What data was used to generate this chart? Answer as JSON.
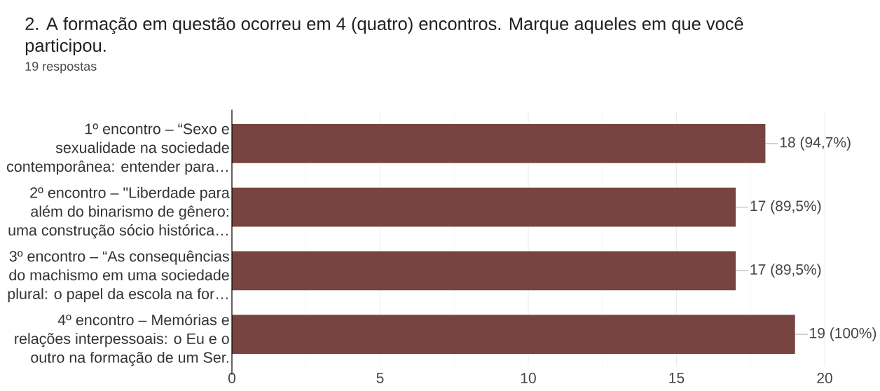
{
  "chart_data": {
    "type": "bar",
    "orientation": "horizontal",
    "title": "2. A formação em questão ocorreu em 4 (quatro) encontros. Marque aqueles em que você participou.",
    "subtitle": "19 respostas",
    "categories": [
      "1º encontro – “Sexo e sexualidade na sociedade contemporânea: entender para…",
      "2º encontro – \"Liberdade para além do binarismo de gênero: uma construção sócio histórica…",
      "3º encontro – “As consequências do machismo em uma sociedade plural: o papel da escola na for…",
      "4º encontro – Memórias e relações interpessoais: o Eu e o outro na formação de um Ser."
    ],
    "values": [
      18,
      17,
      17,
      19
    ],
    "value_labels": [
      "18 (94,7%)",
      "17 (89,5%)",
      "17 (89,5%)",
      "19 (100%)"
    ],
    "color": "#774441",
    "xlim": [
      0,
      20
    ],
    "xticks": [
      0,
      5,
      10,
      15,
      20
    ],
    "grid": "x"
  }
}
